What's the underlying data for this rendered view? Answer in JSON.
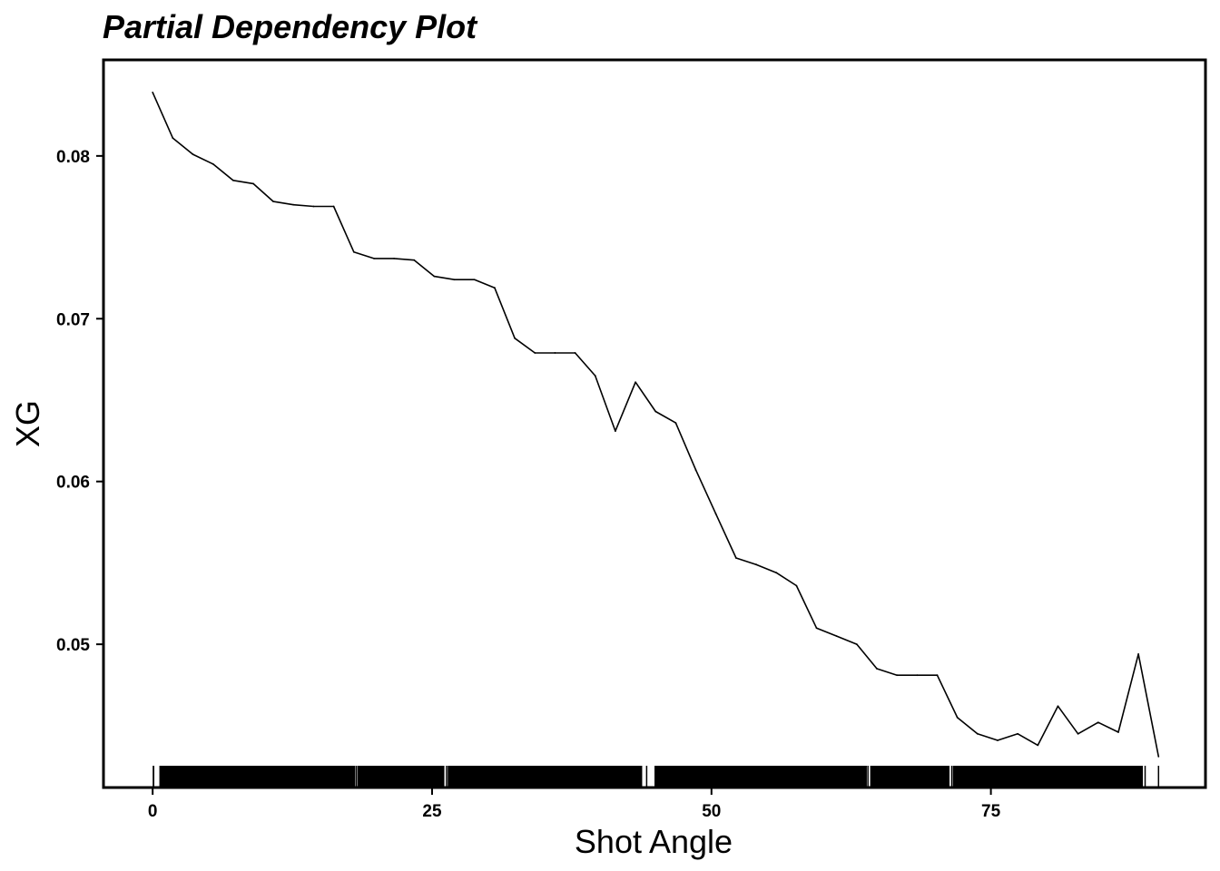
{
  "chart_data": {
    "type": "line",
    "title": "Partial Dependency Plot",
    "xlabel": "Shot Angle",
    "ylabel": "XG",
    "xlim": [
      -4.4,
      94.2
    ],
    "ylim": [
      0.0412,
      0.0859
    ],
    "xticks": [
      0,
      25,
      50,
      75
    ],
    "xtick_labels": [
      "0",
      "25",
      "50",
      "75"
    ],
    "yticks": [
      0.05,
      0.06,
      0.07,
      0.08
    ],
    "ytick_labels": [
      "0.05",
      "0.06",
      "0.07",
      "0.08"
    ],
    "grid": false,
    "legend": "none",
    "series": [
      {
        "x": [
          0,
          1.8,
          3.6,
          5.4,
          7.2,
          9.0,
          10.8,
          12.6,
          14.4,
          16.2,
          18.0,
          19.8,
          21.6,
          23.4,
          25.2,
          27.0,
          28.8,
          30.6,
          32.4,
          34.2,
          36.0,
          37.8,
          39.6,
          41.4,
          43.2,
          45.0,
          46.8,
          48.6,
          50.4,
          52.2,
          54.0,
          55.8,
          57.6,
          59.4,
          61.2,
          63.0,
          64.8,
          66.6,
          68.4,
          70.2,
          72.0,
          73.8,
          75.6,
          77.4,
          79.2,
          81.0,
          82.8,
          84.6,
          86.4,
          88.2,
          90.0
        ],
        "y": [
          0.0839,
          0.0811,
          0.0801,
          0.0795,
          0.0785,
          0.0783,
          0.0772,
          0.077,
          0.0769,
          0.0769,
          0.0741,
          0.0737,
          0.0737,
          0.0736,
          0.0726,
          0.0724,
          0.0724,
          0.0719,
          0.0688,
          0.0679,
          0.0679,
          0.0679,
          0.0665,
          0.0631,
          0.0661,
          0.0643,
          0.0636,
          0.0607,
          0.058,
          0.0553,
          0.0549,
          0.0544,
          0.0536,
          0.051,
          0.0505,
          0.05,
          0.0485,
          0.0481,
          0.0481,
          0.0481,
          0.0455,
          0.0445,
          0.0441,
          0.0445,
          0.0438,
          0.0462,
          0.0445,
          0.0452,
          0.0446,
          0.0494,
          0.0431
        ],
        "color": "#000000"
      }
    ],
    "rug": {
      "color": "#000000",
      "bands": [
        [
          0.0,
          0.15
        ],
        [
          0.6,
          18.1
        ],
        [
          18.3,
          26.1
        ],
        [
          26.4,
          43.8
        ],
        [
          44.9,
          63.9
        ],
        [
          64.2,
          71.3
        ],
        [
          71.6,
          88.6
        ]
      ],
      "ticks": [
        1.2,
        2.5,
        6.0,
        9.7,
        11.2,
        13.9,
        18.2,
        22.6,
        26.3,
        33.6,
        34.6,
        37.2,
        41.2,
        44.2,
        52.0,
        54.4,
        56.6,
        57.0,
        59.8,
        63.2,
        64.0,
        65.6,
        66.0,
        67.8,
        69.3,
        70.6,
        71.5,
        73.8,
        75.6,
        76.6,
        77.6,
        79.5,
        80.4,
        82.1,
        83.0,
        84.0,
        84.6,
        85.2,
        86.0,
        88.8,
        90.0
      ]
    }
  }
}
